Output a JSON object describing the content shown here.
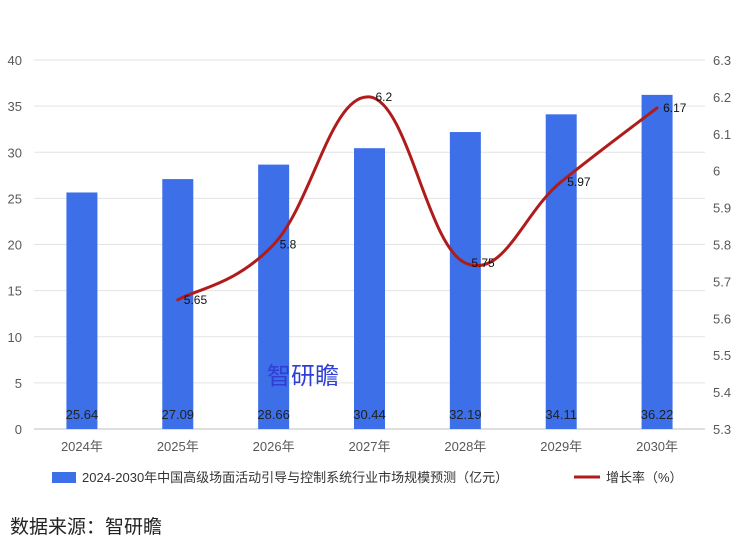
{
  "chart_data": {
    "type": "bar",
    "categories": [
      "2024年",
      "2025年",
      "2026年",
      "2027年",
      "2028年",
      "2029年",
      "2030年"
    ],
    "series": [
      {
        "name": "2024-2030年中国高级场面活动引导与控制系统行业市场规模预测（亿元）",
        "type": "bar",
        "axis": "left",
        "values": [
          25.64,
          27.09,
          28.66,
          30.44,
          32.19,
          34.11,
          36.22
        ],
        "labels": [
          "25.64",
          "27.09",
          "28.66",
          "30.44",
          "32.19",
          "34.11",
          "36.22"
        ],
        "color": "#3c6fe8"
      },
      {
        "name": "增长率（%）",
        "type": "line",
        "axis": "right",
        "smooth": true,
        "values": [
          null,
          5.65,
          5.8,
          6.2,
          5.75,
          5.97,
          6.17
        ],
        "labels": [
          "",
          "5.65",
          "5.8",
          "6.2",
          "5.75",
          "5.97",
          "6.17"
        ],
        "color": "#b01c1c"
      }
    ],
    "ylim_left": [
      0,
      40
    ],
    "yticks_left": [
      "0",
      "5",
      "10",
      "15",
      "20",
      "25",
      "30",
      "35",
      "40"
    ],
    "ylim_right": [
      5.3,
      6.3
    ],
    "yticks_right": [
      "5.3",
      "5.4",
      "5.5",
      "5.6",
      "5.7",
      "5.8",
      "5.9",
      "6",
      "6.1",
      "6.2",
      "6.3"
    ],
    "grid": true,
    "legend": "bottom"
  },
  "watermark": "智研瞻",
  "source": "数据来源：智研瞻"
}
